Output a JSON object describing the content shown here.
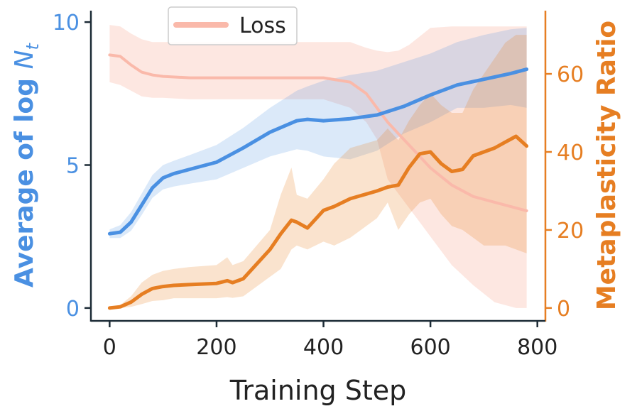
{
  "chart_data": {
    "type": "line",
    "xlabel": "Training Step",
    "ylabel_left": "Average of log N_t",
    "ylabel_left_parts": {
      "main": "Average of log ",
      "var": "N",
      "sub": "t"
    },
    "ylabel_right": "Metaplasticity Ratio",
    "xlim": [
      -35,
      815
    ],
    "ylim_left": [
      -0.45,
      10.4
    ],
    "ylim_right": [
      -3.3,
      76.2
    ],
    "xticks": [
      0,
      200,
      400,
      600,
      800
    ],
    "xtick_labels": [
      "0",
      "200",
      "400",
      "600",
      "800"
    ],
    "yticks_left": [
      0,
      5,
      10
    ],
    "ytick_labels_left": [
      "0",
      "5",
      "10"
    ],
    "yticks_right": [
      0,
      20,
      40,
      60
    ],
    "ytick_labels_right": [
      "0",
      "20",
      "40",
      "60"
    ],
    "legend": {
      "position": "top-left",
      "entries": [
        "Loss"
      ]
    },
    "colors": {
      "avg_log": "#4a90e2",
      "meta": "#e67e22",
      "loss": "#fab9aa",
      "left_axis": "#4a90e2",
      "right_axis": "#e67e22",
      "spine": "#1c2b36"
    },
    "series": [
      {
        "name": "Average of log N_t",
        "axis": "left",
        "x": [
          0,
          20,
          40,
          60,
          80,
          100,
          120,
          150,
          200,
          250,
          300,
          350,
          370,
          400,
          450,
          500,
          550,
          600,
          650,
          700,
          750,
          780
        ],
        "y": [
          2.6,
          2.65,
          3.0,
          3.6,
          4.2,
          4.55,
          4.7,
          4.85,
          5.1,
          5.6,
          6.15,
          6.55,
          6.6,
          6.55,
          6.62,
          6.75,
          7.05,
          7.45,
          7.8,
          8.0,
          8.2,
          8.35
        ],
        "upper": [
          2.75,
          2.9,
          3.35,
          4.0,
          4.65,
          5.0,
          5.15,
          5.35,
          5.7,
          6.3,
          7.0,
          7.6,
          7.75,
          7.95,
          8.15,
          8.3,
          8.6,
          8.9,
          9.3,
          9.55,
          9.75,
          9.8
        ],
        "lower": [
          2.45,
          2.45,
          2.7,
          3.25,
          3.85,
          4.15,
          4.25,
          4.35,
          4.5,
          4.9,
          5.3,
          5.55,
          5.5,
          5.3,
          5.2,
          5.5,
          6.1,
          6.5,
          7.0,
          7.0,
          7.1,
          7.0
        ]
      },
      {
        "name": "Metaplasticity Ratio",
        "axis": "right",
        "x": [
          0,
          20,
          40,
          60,
          80,
          100,
          120,
          150,
          200,
          220,
          230,
          250,
          300,
          320,
          340,
          350,
          370,
          400,
          420,
          450,
          500,
          520,
          540,
          560,
          580,
          600,
          620,
          640,
          660,
          680,
          700,
          720,
          740,
          760,
          780
        ],
        "y": [
          0,
          0.3,
          1.5,
          3.5,
          5.0,
          5.5,
          5.8,
          6.0,
          6.3,
          7.0,
          6.5,
          7.5,
          15.0,
          19.0,
          22.5,
          22.0,
          20.5,
          25.0,
          26.0,
          28.0,
          30.0,
          31.0,
          31.5,
          36.0,
          39.5,
          40.0,
          37.0,
          35.0,
          35.5,
          39.0,
          40.0,
          41.0,
          42.5,
          44.0,
          41.5
        ],
        "upper": [
          0.2,
          0.8,
          3.0,
          6.5,
          8.5,
          9.5,
          10.0,
          10.5,
          11.0,
          13.0,
          11.0,
          12.0,
          20.0,
          29.0,
          36.0,
          29.0,
          28.0,
          33.0,
          37.0,
          41.0,
          43.0,
          46.0,
          43.0,
          48.0,
          52.0,
          55.0,
          52.0,
          50.0,
          50.0,
          56.0,
          60.0,
          64.0,
          68.0,
          70.0,
          70.0
        ],
        "lower": [
          0,
          0,
          0.3,
          1.0,
          1.8,
          2.0,
          2.5,
          2.5,
          2.5,
          2.8,
          2.6,
          3.0,
          8.0,
          10.0,
          15.0,
          16.0,
          15.0,
          17.0,
          16.0,
          18.0,
          23.0,
          27.0,
          20.0,
          24.0,
          27.0,
          28.0,
          24.0,
          21.0,
          20.0,
          18.0,
          16.0,
          16.0,
          16.0,
          15.0,
          14.0
        ]
      },
      {
        "name": "Loss",
        "axis": "left",
        "x": [
          0,
          20,
          40,
          60,
          80,
          100,
          150,
          200,
          300,
          400,
          450,
          480,
          500,
          520,
          540,
          560,
          580,
          600,
          640,
          680,
          720,
          760,
          780
        ],
        "y": [
          8.85,
          8.8,
          8.5,
          8.25,
          8.15,
          8.1,
          8.05,
          8.05,
          8.05,
          8.05,
          7.9,
          7.5,
          7.0,
          6.5,
          6.1,
          5.7,
          5.3,
          4.9,
          4.3,
          3.9,
          3.7,
          3.5,
          3.4
        ],
        "upper": [
          9.9,
          9.85,
          9.6,
          9.4,
          9.3,
          9.3,
          9.3,
          9.3,
          9.3,
          9.3,
          9.3,
          9.1,
          9.0,
          8.95,
          9.0,
          9.2,
          9.5,
          9.8,
          9.85,
          9.85,
          9.85,
          9.85,
          9.85
        ],
        "lower": [
          7.9,
          7.8,
          7.6,
          7.4,
          7.35,
          7.35,
          7.3,
          7.3,
          7.3,
          7.3,
          7.0,
          6.5,
          5.9,
          4.5,
          4.0,
          3.5,
          3.0,
          2.5,
          1.5,
          0.8,
          0.2,
          0.0,
          0.0
        ]
      }
    ]
  }
}
